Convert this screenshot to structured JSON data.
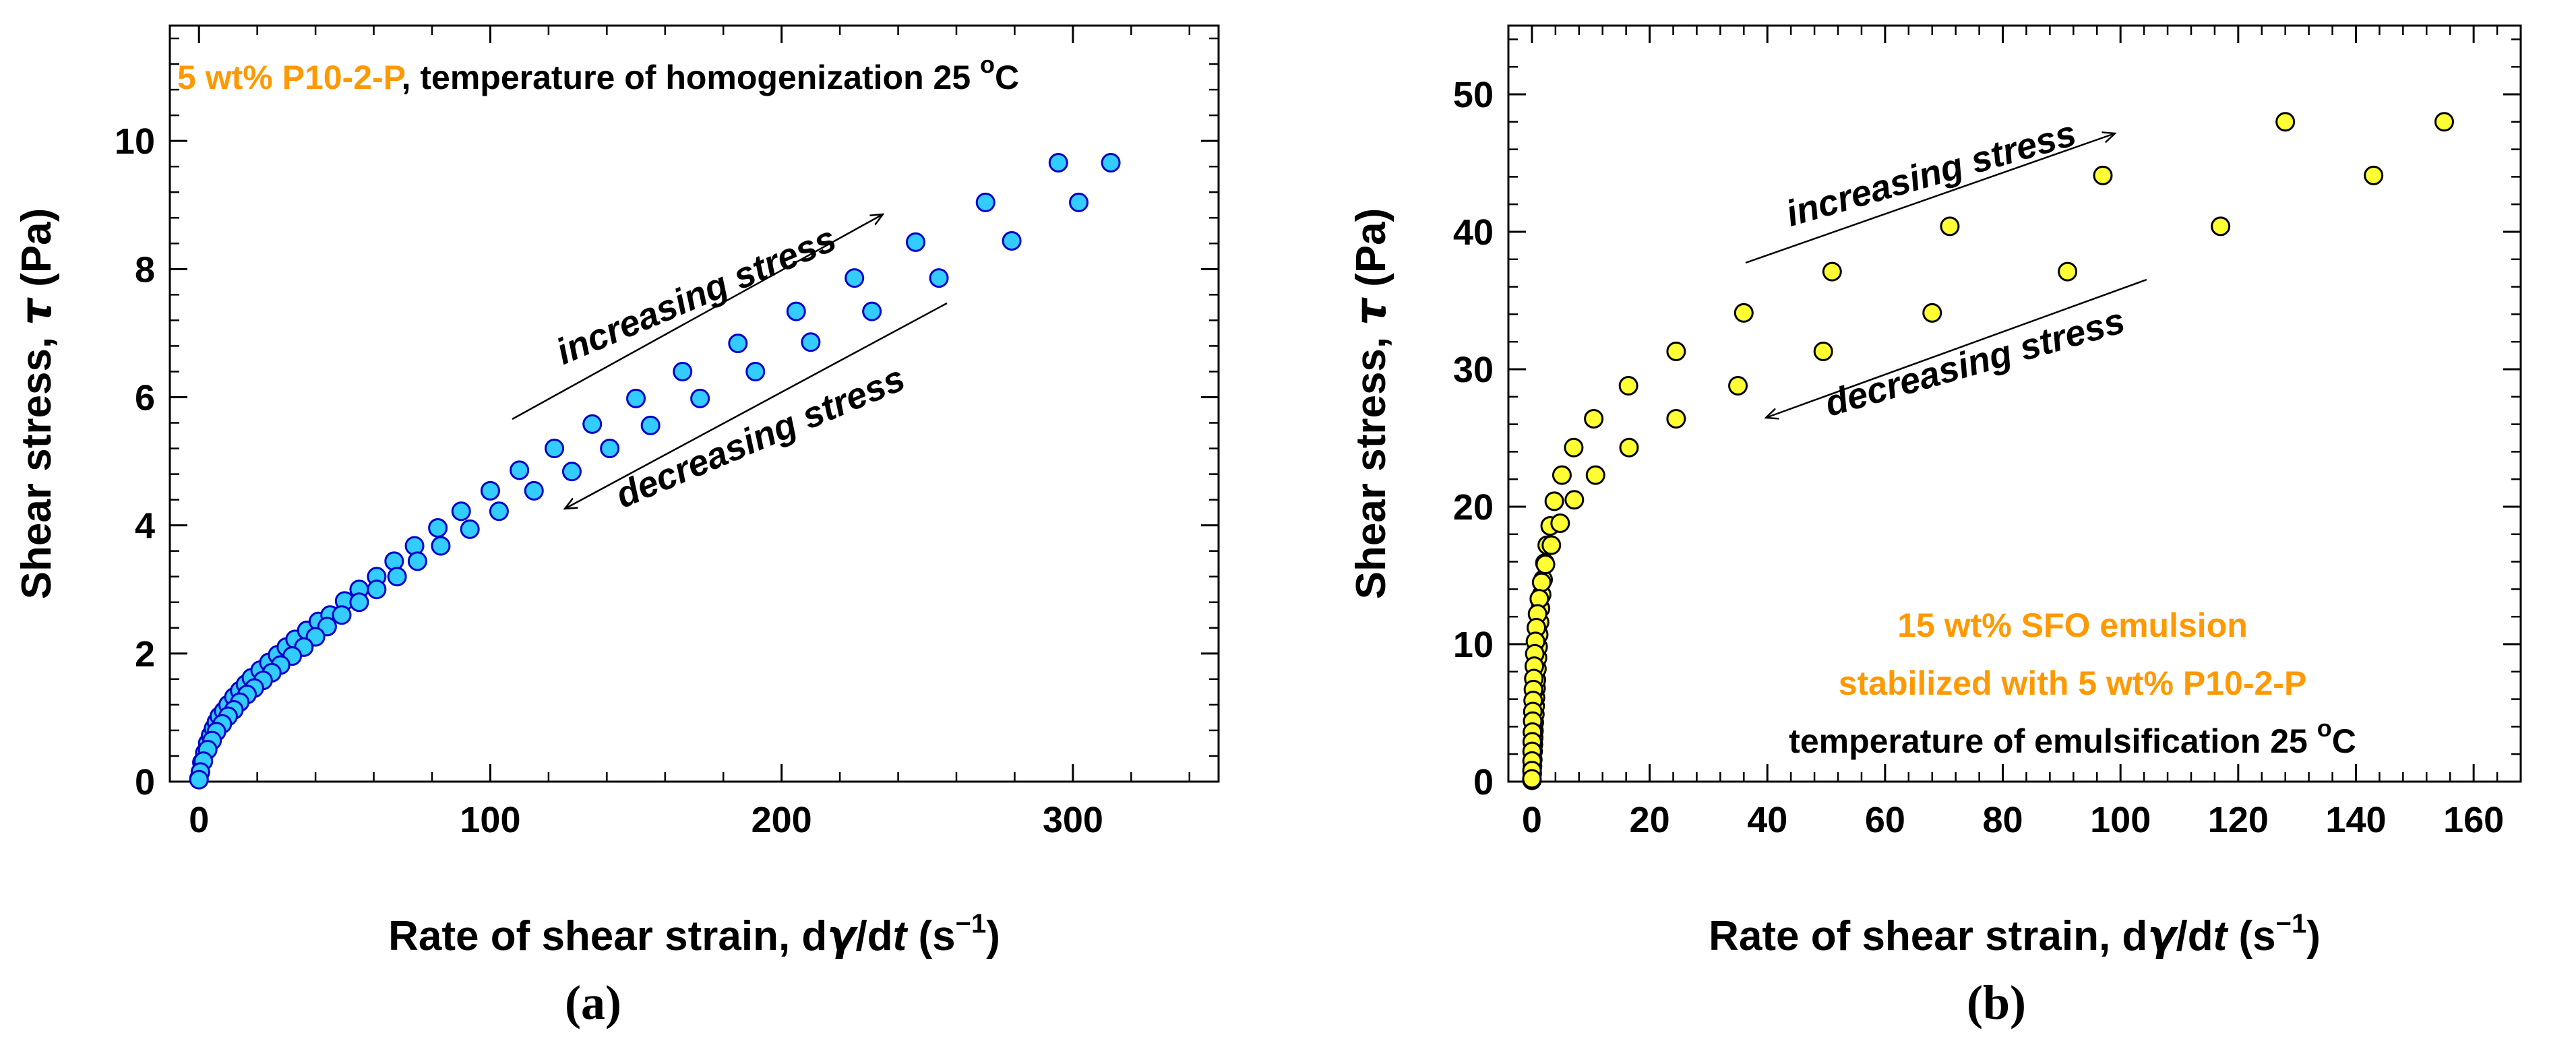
{
  "chart_data": [
    {
      "type": "scatter",
      "panel_label": "(a)",
      "title": "",
      "xlabel": {
        "pre": "Rate of shear strain, d",
        "sym": "γ",
        "mid": "/d",
        "var": "t",
        "post": " (s",
        "sup": "−1",
        "end": ")"
      },
      "ylabel": {
        "pre": "Shear stress, ",
        "sym": "τ",
        "post": " (Pa)"
      },
      "xlim": [
        -10,
        350
      ],
      "ylim": [
        0,
        11.8
      ],
      "xticks": [
        0,
        100,
        200,
        300
      ],
      "yticks": [
        0,
        2,
        4,
        6,
        8,
        10
      ],
      "marker_fill": "#33ccff",
      "marker_edge": "#0000cc",
      "note_lines": [
        {
          "parts": [
            {
              "text": "5 wt% P10-2-P",
              "color": "#ff9900"
            },
            {
              "text": ", temperature of homogenization 25 ",
              "color": "#000000"
            },
            {
              "text": "o",
              "color": "#000000",
              "sup": true
            },
            {
              "text": "C",
              "color": "#000000"
            }
          ]
        }
      ],
      "annotations": {
        "increasing": "increasing stress",
        "decreasing": "decreasing stress"
      },
      "series": [
        {
          "name": "increasing stress",
          "points": [
            [
              0,
              0.05
            ],
            [
              1,
              0.3
            ],
            [
              2,
              0.45
            ],
            [
              3,
              0.6
            ],
            [
              4,
              0.72
            ],
            [
              5,
              0.83
            ],
            [
              6,
              0.93
            ],
            [
              7,
              1.02
            ],
            [
              8.5,
              1.1
            ],
            [
              10,
              1.2
            ],
            [
              12,
              1.32
            ],
            [
              14,
              1.42
            ],
            [
              16,
              1.52
            ],
            [
              18,
              1.62
            ],
            [
              21,
              1.74
            ],
            [
              24,
              1.86
            ],
            [
              27,
              1.98
            ],
            [
              30,
              2.1
            ],
            [
              33,
              2.22
            ],
            [
              37,
              2.36
            ],
            [
              41,
              2.5
            ],
            [
              45,
              2.6
            ],
            [
              50,
              2.82
            ],
            [
              55,
              3.0
            ],
            [
              61,
              3.2
            ],
            [
              67,
              3.44
            ],
            [
              74,
              3.68
            ],
            [
              82,
              3.96
            ],
            [
              90,
              4.22
            ],
            [
              100,
              4.54
            ],
            [
              110,
              4.86
            ],
            [
              122,
              5.2
            ],
            [
              135,
              5.58
            ],
            [
              150,
              5.98
            ],
            [
              166,
              6.4
            ],
            [
              185,
              6.84
            ],
            [
              205,
              7.34
            ],
            [
              225,
              7.86
            ],
            [
              246,
              8.42
            ],
            [
              270,
              9.04
            ],
            [
              295,
              9.66
            ],
            [
              313,
              9.66
            ]
          ]
        },
        {
          "name": "decreasing stress",
          "points": [
            [
              302,
              9.04
            ],
            [
              279,
              8.44
            ],
            [
              254,
              7.86
            ],
            [
              231,
              7.34
            ],
            [
              210,
              6.86
            ],
            [
              191,
              6.4
            ],
            [
              172,
              5.98
            ],
            [
              155,
              5.56
            ],
            [
              141,
              5.2
            ],
            [
              128,
              4.84
            ],
            [
              115,
              4.54
            ],
            [
              103,
              4.22
            ],
            [
              93,
              3.94
            ],
            [
              83,
              3.68
            ],
            [
              75,
              3.44
            ],
            [
              68,
              3.2
            ],
            [
              61,
              3.0
            ],
            [
              55,
              2.8
            ],
            [
              49,
              2.6
            ],
            [
              44,
              2.42
            ],
            [
              40,
              2.26
            ],
            [
              36,
              2.1
            ],
            [
              32,
              1.96
            ],
            [
              28,
              1.82
            ],
            [
              25,
              1.7
            ],
            [
              22,
              1.58
            ],
            [
              19,
              1.46
            ],
            [
              16.5,
              1.36
            ],
            [
              14,
              1.24
            ],
            [
              12,
              1.12
            ],
            [
              10,
              1.02
            ],
            [
              8,
              0.9
            ],
            [
              6,
              0.78
            ],
            [
              4.5,
              0.64
            ],
            [
              3,
              0.5
            ],
            [
              1.5,
              0.32
            ],
            [
              0.5,
              0.15
            ],
            [
              0,
              0.03
            ]
          ]
        }
      ]
    },
    {
      "type": "scatter",
      "panel_label": "(b)",
      "title": "",
      "xlabel": {
        "pre": "Rate of shear strain, d",
        "sym": "γ",
        "mid": "/d",
        "var": "t",
        "post": " (s",
        "sup": "−1",
        "end": ")"
      },
      "ylabel": {
        "pre": "Shear stress, ",
        "sym": "τ",
        "post": " (Pa)"
      },
      "xlim": [
        -4,
        168
      ],
      "ylim": [
        0,
        55
      ],
      "xticks": [
        0,
        20,
        40,
        60,
        80,
        100,
        120,
        140,
        160
      ],
      "yticks": [
        0,
        10,
        20,
        30,
        40,
        50
      ],
      "marker_fill": "#ffff33",
      "marker_edge": "#000000",
      "note_lines": [
        {
          "parts": [
            {
              "text": "15 wt% SFO emulsion",
              "color": "#ff9900"
            }
          ]
        },
        {
          "parts": [
            {
              "text": "stabilized with 5 wt% P10-2-P",
              "color": "#ff9900"
            }
          ]
        },
        {
          "parts": [
            {
              "text": "temperature of emulsification 25 ",
              "color": "#000000"
            },
            {
              "text": "o",
              "color": "#000000",
              "sup": true
            },
            {
              "text": "C",
              "color": "#000000"
            }
          ]
        }
      ],
      "annotations": {
        "increasing": "increasing stress",
        "decreasing": "decreasing stress"
      },
      "series": [
        {
          "name": "increasing stress",
          "points": [
            [
              0,
              0.1
            ],
            [
              0.05,
              0.6
            ],
            [
              0.1,
              1.1
            ],
            [
              0.15,
              1.6
            ],
            [
              0.2,
              2.2
            ],
            [
              0.25,
              2.7
            ],
            [
              0.3,
              3.2
            ],
            [
              0.35,
              3.7
            ],
            [
              0.4,
              4.3
            ],
            [
              0.5,
              4.9
            ],
            [
              0.55,
              5.5
            ],
            [
              0.6,
              6.1
            ],
            [
              0.7,
              6.8
            ],
            [
              0.75,
              7.4
            ],
            [
              0.85,
              8.2
            ],
            [
              0.95,
              9.0
            ],
            [
              1.05,
              9.8
            ],
            [
              1.15,
              10.7
            ],
            [
              1.3,
              11.6
            ],
            [
              1.45,
              12.6
            ],
            [
              1.65,
              13.6
            ],
            [
              1.9,
              14.7
            ],
            [
              2.2,
              15.9
            ],
            [
              2.6,
              17.2
            ],
            [
              3.1,
              18.6
            ],
            [
              3.8,
              20.4
            ],
            [
              5.1,
              22.3
            ],
            [
              7.1,
              24.3
            ],
            [
              10.5,
              26.4
            ],
            [
              16.4,
              28.8
            ],
            [
              24.5,
              31.3
            ],
            [
              36,
              34.1
            ],
            [
              51,
              37.1
            ],
            [
              71,
              40.4
            ],
            [
              97,
              44.1
            ],
            [
              128,
              48.0
            ],
            [
              155,
              48.0
            ]
          ]
        },
        {
          "name": "decreasing stress",
          "points": [
            [
              143,
              44.1
            ],
            [
              117,
              40.4
            ],
            [
              91,
              37.1
            ],
            [
              68,
              34.1
            ],
            [
              49.5,
              31.3
            ],
            [
              35,
              28.8
            ],
            [
              24.5,
              26.4
            ],
            [
              16.5,
              24.3
            ],
            [
              10.8,
              22.3
            ],
            [
              7.2,
              20.5
            ],
            [
              4.8,
              18.8
            ],
            [
              3.3,
              17.2
            ],
            [
              2.3,
              15.8
            ],
            [
              1.65,
              14.5
            ],
            [
              1.25,
              13.3
            ],
            [
              0.95,
              12.2
            ],
            [
              0.75,
              11.2
            ],
            [
              0.6,
              10.2
            ],
            [
              0.48,
              9.3
            ],
            [
              0.4,
              8.4
            ],
            [
              0.32,
              7.5
            ],
            [
              0.25,
              6.7
            ],
            [
              0.2,
              5.9
            ],
            [
              0.15,
              5.1
            ],
            [
              0.12,
              4.4
            ],
            [
              0.08,
              3.6
            ],
            [
              0.05,
              2.9
            ],
            [
              0.03,
              2.2
            ],
            [
              0.02,
              1.5
            ],
            [
              0.01,
              0.8
            ],
            [
              0,
              0.2
            ]
          ]
        }
      ]
    }
  ]
}
